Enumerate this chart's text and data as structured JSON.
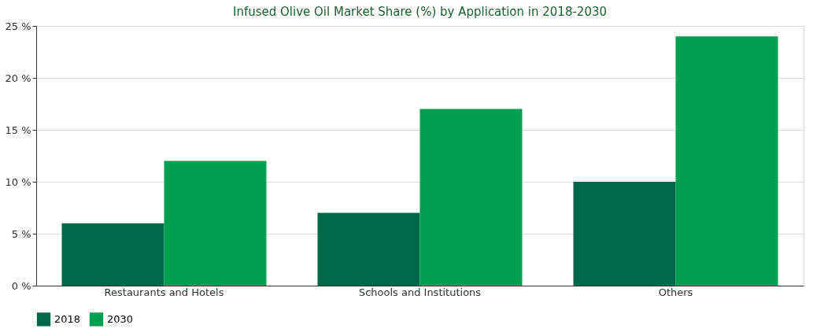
{
  "chart_data": {
    "type": "bar",
    "title": "Infused Olive Oil Market Share (%) by Application in 2018-2030",
    "categories": [
      "Restaurants and Hotels",
      "Schools and Institutions",
      "Others"
    ],
    "series": [
      {
        "name": "2018",
        "color": "#006847",
        "values": [
          6,
          7,
          10
        ]
      },
      {
        "name": "2030",
        "color": "#009e4f",
        "values": [
          12,
          17,
          24
        ]
      }
    ],
    "ylim": [
      0,
      25
    ],
    "yticks": [
      {
        "value": 0,
        "label": "0 %"
      },
      {
        "value": 5,
        "label": "5 %"
      },
      {
        "value": 10,
        "label": "10 %"
      },
      {
        "value": 15,
        "label": "15 %"
      },
      {
        "value": 20,
        "label": "20 %"
      },
      {
        "value": 25,
        "label": "25 %"
      }
    ],
    "grid": "y",
    "legend": "bottom"
  }
}
